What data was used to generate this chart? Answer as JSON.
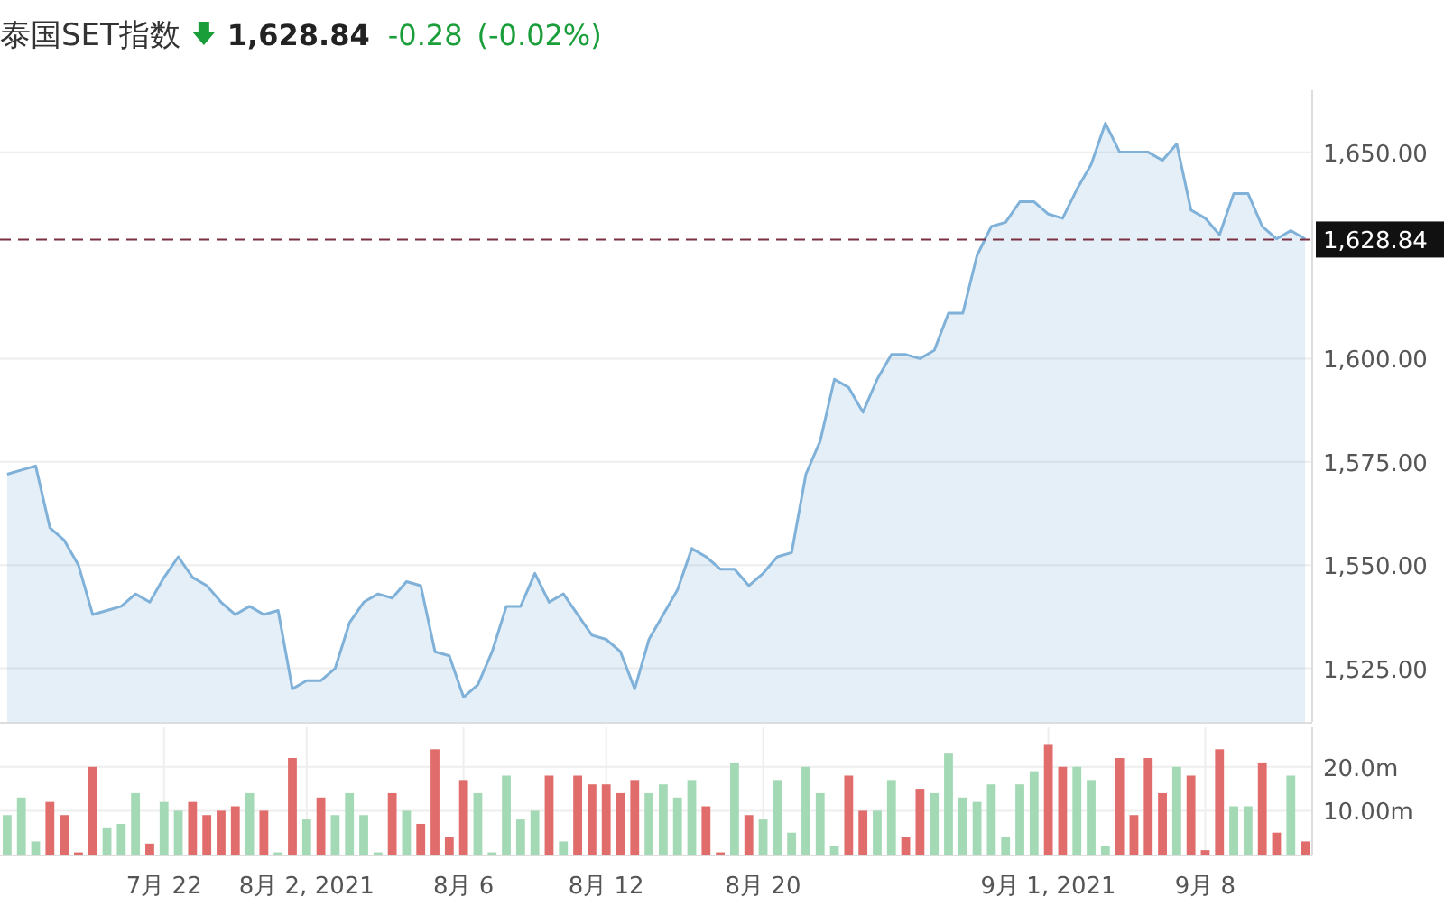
{
  "chart_data": [
    {
      "type": "area",
      "title": "泰国SET指数",
      "annotations": [
        "1,628.84",
        "-0.28",
        "(-0.02%)"
      ],
      "categories": [
        null,
        null,
        null,
        null,
        null,
        null,
        null,
        null,
        null,
        null,
        null,
        null,
        null,
        null,
        null,
        null,
        null,
        null,
        null,
        null,
        null,
        null,
        null,
        null,
        null,
        null,
        null,
        null,
        null,
        null,
        null,
        null,
        null,
        null,
        null,
        null,
        null,
        null,
        null,
        null,
        null,
        null,
        null,
        null,
        null,
        null,
        null,
        null,
        null,
        null,
        null,
        null,
        null,
        null,
        null,
        null,
        null,
        null,
        null,
        null,
        null,
        null,
        null,
        null,
        null,
        null,
        null,
        null,
        null,
        null,
        null,
        null,
        null,
        null,
        null,
        null,
        null,
        null,
        null,
        null,
        null,
        null,
        null,
        null,
        null,
        null,
        null,
        null,
        null,
        null,
        null,
        null
      ],
      "series": [
        {
          "color": "#7fb1d9",
          "values": [
            1572,
            1573,
            1574,
            1559,
            1556,
            1550,
            1538,
            1539,
            1540,
            1543,
            1541,
            1547,
            1552,
            1547,
            1545,
            1541,
            1538,
            1540,
            1538,
            1539,
            1520,
            1522,
            1522,
            1525,
            1536,
            1541,
            1543,
            1542,
            1546,
            1545,
            1529,
            1528,
            1518,
            1521,
            1529,
            1540,
            1540,
            1548,
            1541,
            1543,
            1538,
            1533,
            1532,
            1529,
            1520,
            1532,
            1538,
            1544,
            1554,
            1552,
            1549,
            1549,
            1545,
            1548,
            1552,
            1553,
            1572,
            1580,
            1595,
            1593,
            1587,
            1595,
            1601,
            1601,
            1600,
            1602,
            1611,
            1611,
            1625,
            1632,
            1633,
            1638,
            1638,
            1635,
            1634,
            1641,
            1647,
            1657,
            1650,
            1650,
            1650,
            1648,
            1652,
            1636,
            1634,
            1630,
            1640,
            1640,
            1632,
            1629,
            1631,
            1629
          ]
        }
      ],
      "ylim": [
        1512,
        1665
      ],
      "yticks": [
        {
          "value": 1525,
          "label": "1,525.00"
        },
        {
          "value": 1550,
          "label": "1,550.00"
        },
        {
          "value": 1575,
          "label": "1,575.00"
        },
        {
          "value": 1600,
          "label": "1,600.00"
        },
        {
          "value": 1650,
          "label": "1,650.00"
        }
      ],
      "ref_lines": [
        {
          "axis": "y",
          "value": 1628.84,
          "label": "1,628.84",
          "color": "#7a3040",
          "line_style": "dashed"
        }
      ],
      "grid": "y",
      "tick_labels": "y"
    },
    {
      "type": "bar",
      "categories": [
        null,
        null,
        null,
        null,
        null,
        null,
        null,
        null,
        null,
        null,
        null,
        "7月 22",
        null,
        null,
        null,
        null,
        null,
        null,
        null,
        null,
        null,
        "8月 2, 2021",
        null,
        null,
        null,
        null,
        null,
        null,
        null,
        null,
        null,
        null,
        "8月 6",
        null,
        null,
        null,
        null,
        null,
        null,
        null,
        null,
        null,
        "8月 12",
        null,
        null,
        null,
        null,
        null,
        null,
        null,
        null,
        null,
        null,
        "8月 20",
        null,
        null,
        null,
        null,
        null,
        null,
        null,
        null,
        null,
        null,
        null,
        null,
        null,
        null,
        null,
        null,
        null,
        null,
        null,
        "9月 1, 2021",
        null,
        null,
        null,
        null,
        null,
        null,
        null,
        null,
        null,
        null,
        "9月 8",
        null,
        null,
        null,
        null,
        null,
        null,
        null
      ],
      "values": [
        9,
        13,
        3,
        12,
        9,
        0.5,
        20,
        6,
        7,
        14,
        2.5,
        12,
        10,
        12,
        9,
        10,
        11,
        14,
        10,
        0.5,
        22,
        8,
        13,
        9,
        14,
        9,
        0.5,
        14,
        10,
        7,
        24,
        4,
        17,
        14,
        0.5,
        18,
        8,
        10,
        18,
        3,
        18,
        16,
        16,
        14,
        17,
        14,
        16,
        13,
        17,
        11,
        0.5,
        21,
        9,
        8,
        17,
        5,
        20,
        14,
        2,
        18,
        10,
        10,
        17,
        4,
        15,
        14,
        23,
        13,
        12,
        16,
        4,
        16,
        19,
        25,
        20,
        20,
        17,
        2,
        22,
        9,
        22,
        14,
        20,
        18,
        1,
        24,
        11,
        11,
        21,
        5,
        18,
        3
      ],
      "colors": [
        "#a3d9b5",
        "#a3d9b5",
        "#a3d9b5",
        "#e06c6c",
        "#e06c6c",
        "#e06c6c",
        "#e06c6c",
        "#a3d9b5",
        "#a3d9b5",
        "#a3d9b5",
        "#e06c6c",
        "#a3d9b5",
        "#a3d9b5",
        "#e06c6c",
        "#e06c6c",
        "#e06c6c",
        "#e06c6c",
        "#a3d9b5",
        "#e06c6c",
        "#a3d9b5",
        "#e06c6c",
        "#a3d9b5",
        "#e06c6c",
        "#a3d9b5",
        "#a3d9b5",
        "#a3d9b5",
        "#a3d9b5",
        "#e06c6c",
        "#a3d9b5",
        "#e06c6c",
        "#e06c6c",
        "#e06c6c",
        "#e06c6c",
        "#a3d9b5",
        "#a3d9b5",
        "#a3d9b5",
        "#a3d9b5",
        "#a3d9b5",
        "#e06c6c",
        "#a3d9b5",
        "#e06c6c",
        "#e06c6c",
        "#e06c6c",
        "#e06c6c",
        "#e06c6c",
        "#a3d9b5",
        "#a3d9b5",
        "#a3d9b5",
        "#a3d9b5",
        "#e06c6c",
        "#e06c6c",
        "#a3d9b5",
        "#e06c6c",
        "#a3d9b5",
        "#a3d9b5",
        "#a3d9b5",
        "#a3d9b5",
        "#a3d9b5",
        "#a3d9b5",
        "#e06c6c",
        "#e06c6c",
        "#a3d9b5",
        "#a3d9b5",
        "#e06c6c",
        "#e06c6c",
        "#a3d9b5",
        "#a3d9b5",
        "#a3d9b5",
        "#a3d9b5",
        "#a3d9b5",
        "#a3d9b5",
        "#a3d9b5",
        "#a3d9b5",
        "#e06c6c",
        "#e06c6c",
        "#a3d9b5",
        "#a3d9b5",
        "#a3d9b5",
        "#e06c6c",
        "#e06c6c",
        "#e06c6c",
        "#e06c6c",
        "#a3d9b5",
        "#e06c6c",
        "#e06c6c",
        "#e06c6c",
        "#a3d9b5",
        "#a3d9b5",
        "#e06c6c",
        "#e06c6c",
        "#a3d9b5",
        "#e06c6c"
      ],
      "ylim": [
        0,
        29
      ],
      "yticks": [
        {
          "value": 10,
          "label": "10.00m"
        },
        {
          "value": 20,
          "label": "20.0m"
        }
      ],
      "grid": true
    }
  ]
}
